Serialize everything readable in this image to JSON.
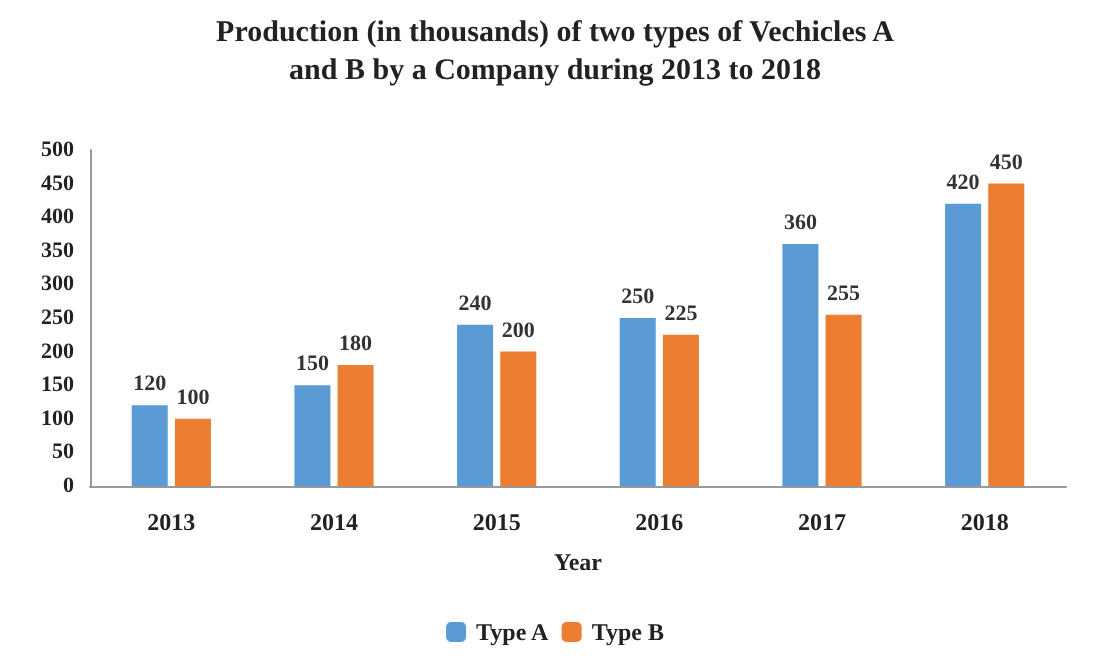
{
  "chart_data": {
    "type": "bar",
    "title": "Production (in thousands) of two types of Vechicles A\nand B by a Company during 2013 to 2018",
    "xlabel": "Year",
    "categories": [
      "2013",
      "2014",
      "2015",
      "2016",
      "2017",
      "2018"
    ],
    "series": [
      {
        "name": "Type A",
        "color": "#5b9bd5",
        "values": [
          120,
          150,
          240,
          250,
          360,
          420
        ]
      },
      {
        "name": "Type B",
        "color": "#ed7d31",
        "values": [
          100,
          180,
          200,
          225,
          255,
          450
        ]
      }
    ],
    "ylim": [
      0,
      500
    ],
    "yticks": [
      0,
      50,
      100,
      150,
      200,
      250,
      300,
      350,
      400,
      450,
      500
    ],
    "grid": false,
    "legend": "bottom",
    "data_labels": true
  }
}
